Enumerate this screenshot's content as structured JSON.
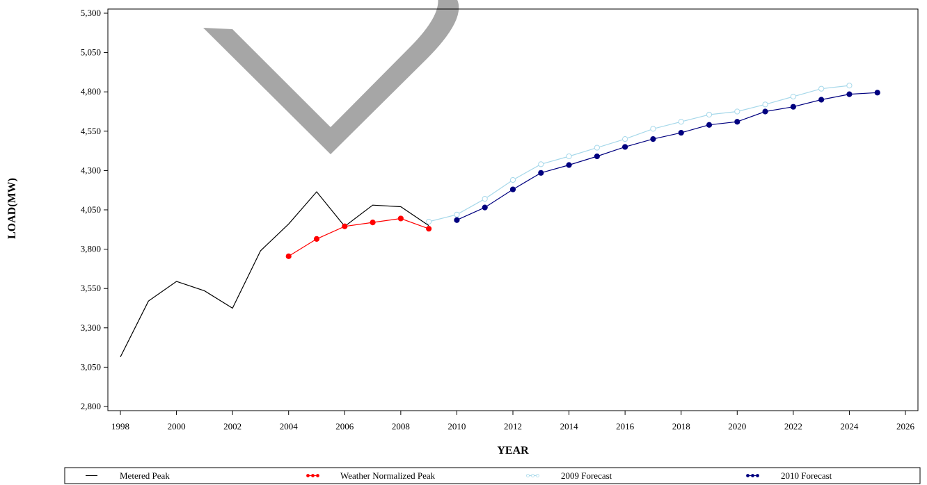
{
  "chart_data": {
    "type": "line",
    "title": "",
    "xlabel": "YEAR",
    "ylabel": "LOAD(MW)",
    "xlim": [
      1998,
      2026
    ],
    "ylim": [
      2800,
      5300
    ],
    "x_ticks": [
      1998,
      2000,
      2002,
      2004,
      2006,
      2008,
      2010,
      2012,
      2014,
      2016,
      2018,
      2020,
      2022,
      2024,
      2026
    ],
    "x_tick_labels": [
      "1998",
      "2000",
      "2002",
      "2004",
      "2006",
      "2008",
      "2010",
      "2012",
      "2014",
      "2016",
      "2018",
      "2020",
      "2022",
      "2024",
      "2026"
    ],
    "y_ticks": [
      2800,
      3050,
      3300,
      3550,
      3800,
      4050,
      4300,
      4550,
      4800,
      5050,
      5300
    ],
    "y_tick_labels": [
      "2,800",
      "3,050",
      "3,300",
      "3,550",
      "3,800",
      "4,050",
      "4,300",
      "4,550",
      "4,800",
      "5,050",
      "5,300"
    ],
    "grid": false,
    "legend_position": "bottom",
    "series": [
      {
        "name": "Metered Peak",
        "color": "#000000",
        "marker": "none",
        "x": [
          1998,
          1999,
          2000,
          2001,
          2002,
          2003,
          2004,
          2005,
          2006,
          2007,
          2008,
          2009
        ],
        "y": [
          3115,
          3470,
          3595,
          3535,
          3425,
          3790,
          3960,
          4165,
          3945,
          4080,
          4070,
          3950
        ]
      },
      {
        "name": "Weather Normalized Peak",
        "color": "#ff0000",
        "marker": "filled-circle",
        "x": [
          2004,
          2005,
          2006,
          2007,
          2008,
          2009
        ],
        "y": [
          3755,
          3865,
          3945,
          3970,
          3995,
          3930
        ]
      },
      {
        "name": "2009 Forecast",
        "color": "#a6d8ea",
        "marker": "open-circle",
        "x": [
          2009,
          2010,
          2011,
          2012,
          2013,
          2014,
          2015,
          2016,
          2017,
          2018,
          2019,
          2020,
          2021,
          2022,
          2023,
          2024
        ],
        "y": [
          3975,
          4020,
          4120,
          4240,
          4340,
          4390,
          4445,
          4500,
          4565,
          4610,
          4655,
          4675,
          4720,
          4770,
          4820,
          4840
        ]
      },
      {
        "name": "2010 Forecast",
        "color": "#00007f",
        "marker": "filled-circle",
        "x": [
          2010,
          2011,
          2012,
          2013,
          2014,
          2015,
          2016,
          2017,
          2018,
          2019,
          2020,
          2021,
          2022,
          2023,
          2024,
          2025
        ],
        "y": [
          3985,
          4065,
          4180,
          4285,
          4335,
          4390,
          4450,
          4500,
          4540,
          4590,
          4610,
          4675,
          4705,
          4750,
          4785,
          4795
        ]
      }
    ],
    "watermark_text": "D"
  }
}
